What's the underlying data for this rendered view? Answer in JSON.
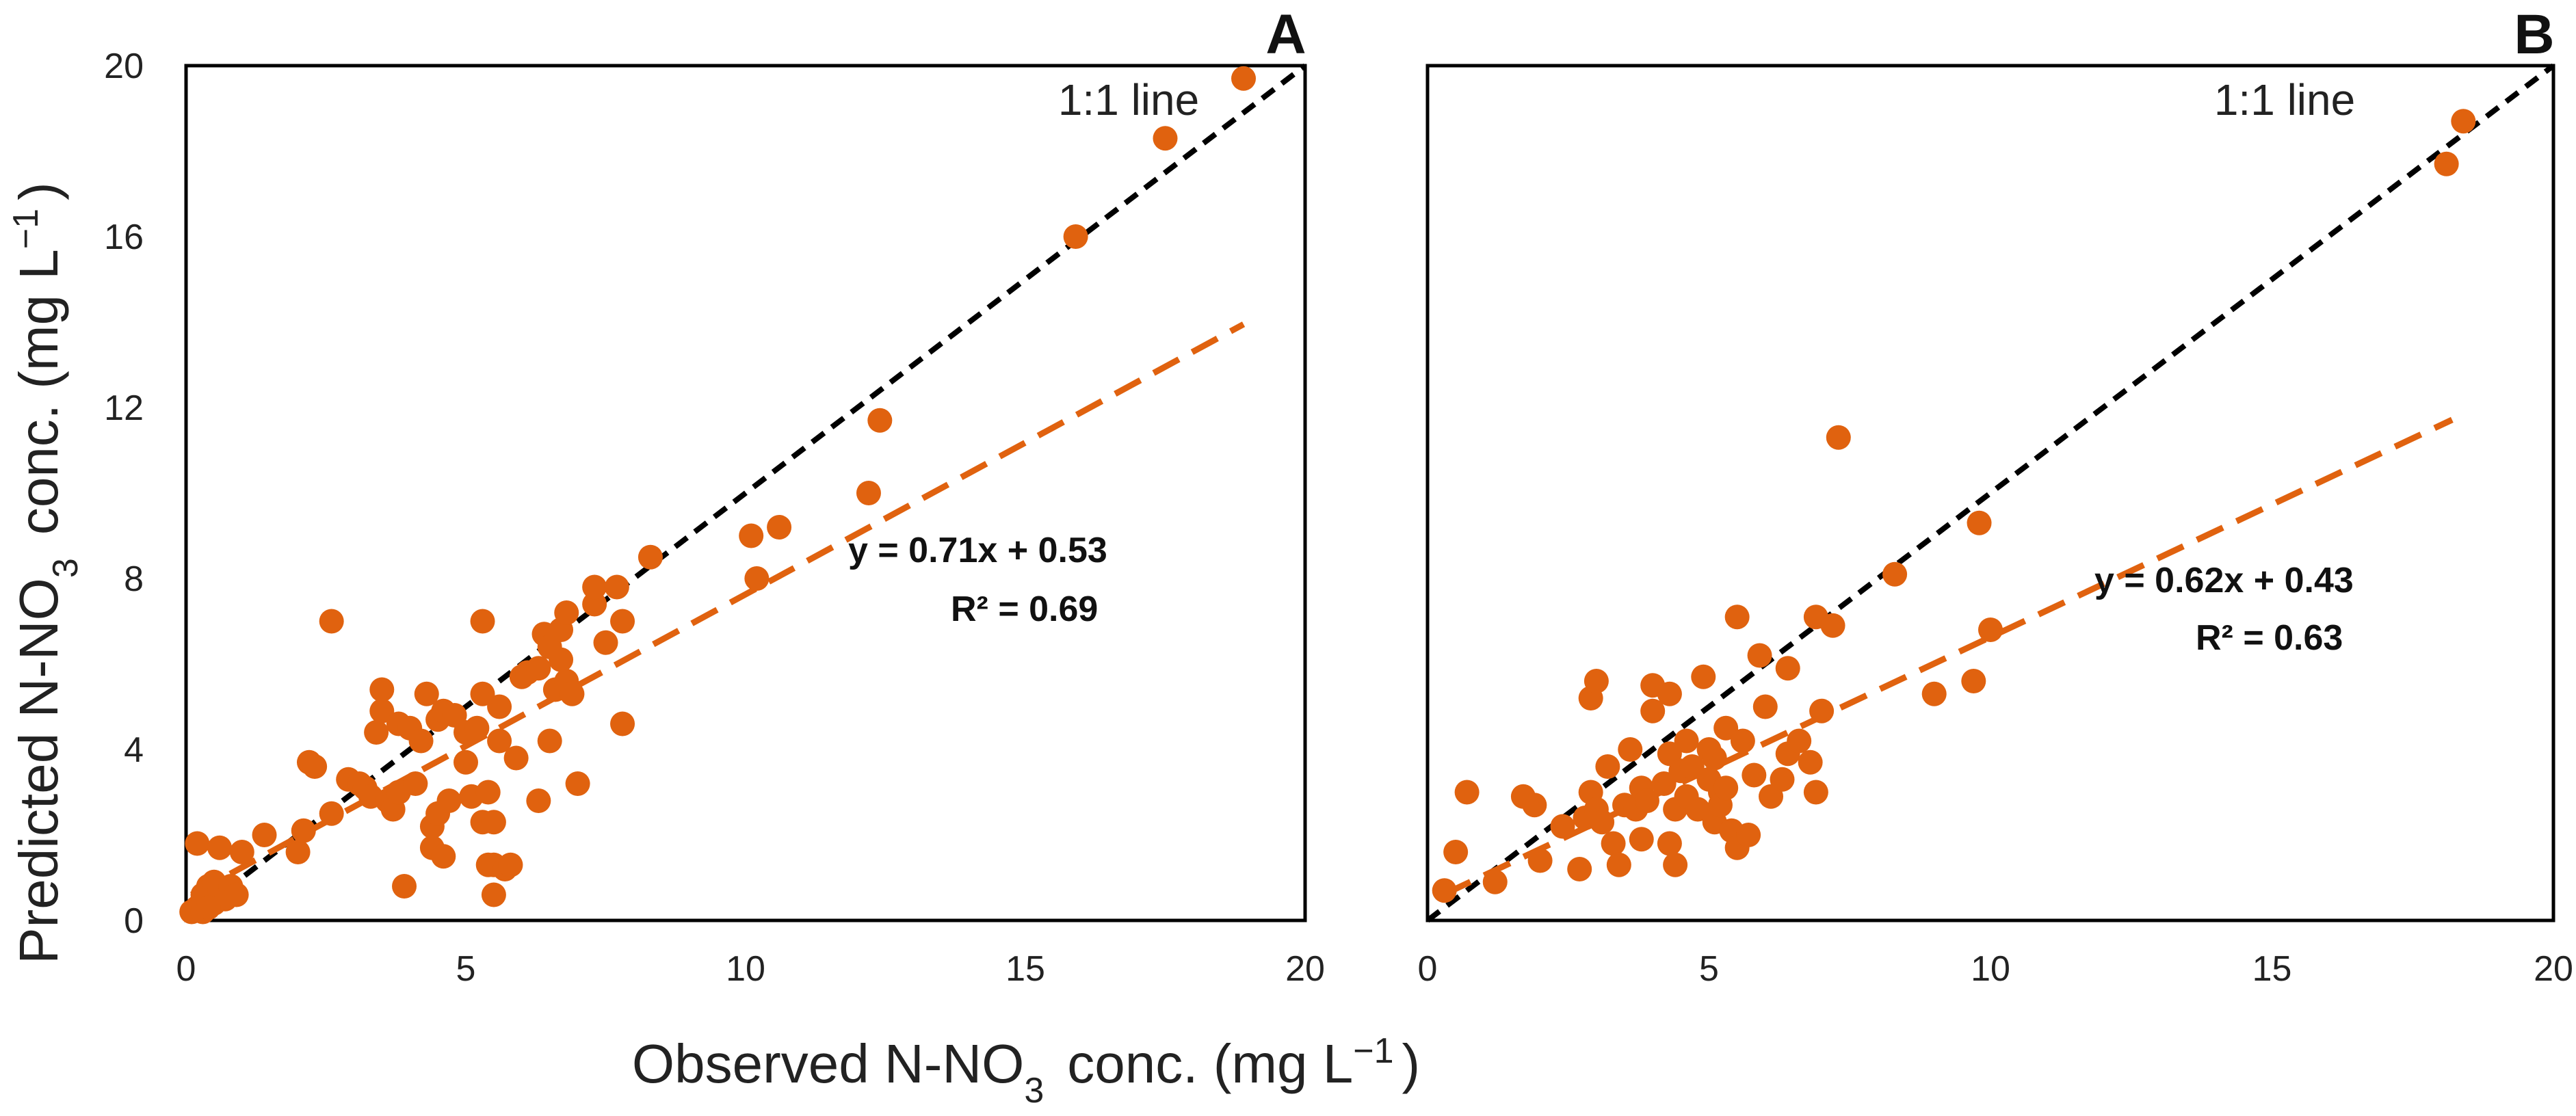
{
  "figure": {
    "xlabel": "Observed N-NO",
    "xlabel_sub": "3",
    "xlabel_unit": "conc. (mg L",
    "xlabel_sup": "−1",
    "xlabel_close": ")",
    "ylabel": "Predicted N-NO",
    "ylabel_sub": "3",
    "ylabel_unit": "conc. (mg L",
    "ylabel_sup": "−1",
    "ylabel_close": ")"
  },
  "colors": {
    "points": "#E0620F",
    "regression": "#E0620F",
    "one_to_one": "#000000",
    "frame": "#000000"
  },
  "chart_data": [
    {
      "panel": "A",
      "type": "scatter",
      "xlim": [
        0,
        20
      ],
      "ylim": [
        0,
        20
      ],
      "x_ticks": [
        0,
        5,
        10,
        15,
        20
      ],
      "y_ticks": [
        0,
        4,
        8,
        12,
        16,
        20
      ],
      "one_to_one_label": "1:1 line",
      "equation": "y = 0.71x + 0.53",
      "r2_label": "R² = 0.69",
      "regression": {
        "slope": 0.71,
        "intercept": 0.53,
        "x_start": 0.1,
        "x_end": 18.9
      },
      "points": [
        [
          0.1,
          0.2
        ],
        [
          0.2,
          0.3
        ],
        [
          0.3,
          0.2
        ],
        [
          0.3,
          0.6
        ],
        [
          0.4,
          0.8
        ],
        [
          0.5,
          0.4
        ],
        [
          0.5,
          0.9
        ],
        [
          0.6,
          0.7
        ],
        [
          0.7,
          0.5
        ],
        [
          0.8,
          0.8
        ],
        [
          0.9,
          0.6
        ],
        [
          0.2,
          1.8
        ],
        [
          0.6,
          1.7
        ],
        [
          1.0,
          1.6
        ],
        [
          0.4,
          0.3
        ],
        [
          1.4,
          2.0
        ],
        [
          2.0,
          1.6
        ],
        [
          2.1,
          2.1
        ],
        [
          2.2,
          3.7
        ],
        [
          2.3,
          3.6
        ],
        [
          2.6,
          2.5
        ],
        [
          2.6,
          7.0
        ],
        [
          2.9,
          3.3
        ],
        [
          3.1,
          3.2
        ],
        [
          3.2,
          3.1
        ],
        [
          3.3,
          2.9
        ],
        [
          3.4,
          4.4
        ],
        [
          3.5,
          5.4
        ],
        [
          3.5,
          4.9
        ],
        [
          3.6,
          2.8
        ],
        [
          3.7,
          2.6
        ],
        [
          3.8,
          4.6
        ],
        [
          3.8,
          3.0
        ],
        [
          3.9,
          0.8
        ],
        [
          4.0,
          4.5
        ],
        [
          4.1,
          3.2
        ],
        [
          4.2,
          4.2
        ],
        [
          4.3,
          5.3
        ],
        [
          4.4,
          2.2
        ],
        [
          4.4,
          1.7
        ],
        [
          4.5,
          2.5
        ],
        [
          4.5,
          4.7
        ],
        [
          4.6,
          4.9
        ],
        [
          4.6,
          1.5
        ],
        [
          4.7,
          2.8
        ],
        [
          4.8,
          4.8
        ],
        [
          5.0,
          3.7
        ],
        [
          5.0,
          4.4
        ],
        [
          5.1,
          2.9
        ],
        [
          5.2,
          4.5
        ],
        [
          5.3,
          7.0
        ],
        [
          5.3,
          5.3
        ],
        [
          5.3,
          2.3
        ],
        [
          5.4,
          3.0
        ],
        [
          5.4,
          1.3
        ],
        [
          5.5,
          0.6
        ],
        [
          5.5,
          1.3
        ],
        [
          5.5,
          2.3
        ],
        [
          5.6,
          4.2
        ],
        [
          5.6,
          5.0
        ],
        [
          5.7,
          1.2
        ],
        [
          5.8,
          1.3
        ],
        [
          5.9,
          3.8
        ],
        [
          6.0,
          5.7
        ],
        [
          6.1,
          5.8
        ],
        [
          6.3,
          2.8
        ],
        [
          6.3,
          5.9
        ],
        [
          6.4,
          6.7
        ],
        [
          6.5,
          4.2
        ],
        [
          6.5,
          6.4
        ],
        [
          6.6,
          5.4
        ],
        [
          6.7,
          6.1
        ],
        [
          6.7,
          6.8
        ],
        [
          6.8,
          5.6
        ],
        [
          6.8,
          7.2
        ],
        [
          6.9,
          5.3
        ],
        [
          7.0,
          3.2
        ],
        [
          7.3,
          7.4
        ],
        [
          7.3,
          7.8
        ],
        [
          7.5,
          6.5
        ],
        [
          7.7,
          7.8
        ],
        [
          7.8,
          4.6
        ],
        [
          7.8,
          7.0
        ],
        [
          8.3,
          8.5
        ],
        [
          10.1,
          9.0
        ],
        [
          10.2,
          8.0
        ],
        [
          10.6,
          9.2
        ],
        [
          12.2,
          10.0
        ],
        [
          12.4,
          11.7
        ],
        [
          15.9,
          16.0
        ],
        [
          17.5,
          18.3
        ],
        [
          18.9,
          19.7
        ]
      ]
    },
    {
      "panel": "B",
      "type": "scatter",
      "xlim": [
        0,
        20
      ],
      "ylim": [
        0,
        20
      ],
      "x_ticks": [
        0,
        5,
        10,
        15,
        20
      ],
      "y_ticks": [
        0,
        4,
        8,
        12,
        16,
        20
      ],
      "one_to_one_label": "1:1 line",
      "equation": "y = 0.62x + 0.43",
      "r2_label": "R² = 0.63",
      "regression": {
        "slope": 0.62,
        "intercept": 0.43,
        "x_start": 0.3,
        "x_end": 18.2
      },
      "points": [
        [
          0.3,
          0.7
        ],
        [
          0.5,
          1.6
        ],
        [
          0.7,
          3.0
        ],
        [
          1.2,
          0.9
        ],
        [
          1.7,
          2.9
        ],
        [
          1.9,
          2.7
        ],
        [
          2.0,
          1.4
        ],
        [
          2.4,
          2.2
        ],
        [
          2.7,
          1.2
        ],
        [
          2.8,
          2.4
        ],
        [
          2.9,
          5.2
        ],
        [
          2.9,
          3.0
        ],
        [
          3.0,
          5.6
        ],
        [
          3.0,
          2.6
        ],
        [
          3.1,
          2.3
        ],
        [
          3.2,
          3.6
        ],
        [
          3.3,
          1.8
        ],
        [
          3.4,
          1.3
        ],
        [
          3.5,
          2.7
        ],
        [
          3.6,
          4.0
        ],
        [
          3.7,
          2.6
        ],
        [
          3.8,
          3.1
        ],
        [
          3.8,
          1.9
        ],
        [
          3.9,
          2.8
        ],
        [
          4.0,
          4.9
        ],
        [
          4.0,
          5.5
        ],
        [
          4.2,
          3.2
        ],
        [
          4.3,
          3.9
        ],
        [
          4.3,
          5.3
        ],
        [
          4.3,
          1.8
        ],
        [
          4.4,
          1.3
        ],
        [
          4.4,
          2.6
        ],
        [
          4.5,
          3.5
        ],
        [
          4.6,
          4.2
        ],
        [
          4.6,
          2.9
        ],
        [
          4.7,
          3.6
        ],
        [
          4.8,
          2.6
        ],
        [
          4.9,
          5.7
        ],
        [
          5.0,
          4.0
        ],
        [
          5.0,
          3.3
        ],
        [
          5.1,
          2.3
        ],
        [
          5.1,
          3.8
        ],
        [
          5.2,
          3.0
        ],
        [
          5.2,
          2.7
        ],
        [
          5.3,
          4.5
        ],
        [
          5.3,
          3.1
        ],
        [
          5.4,
          2.1
        ],
        [
          5.5,
          1.7
        ],
        [
          5.5,
          7.1
        ],
        [
          5.6,
          4.2
        ],
        [
          5.7,
          2.0
        ],
        [
          5.8,
          3.4
        ],
        [
          5.9,
          6.2
        ],
        [
          6.0,
          5.0
        ],
        [
          6.1,
          2.9
        ],
        [
          6.3,
          3.3
        ],
        [
          6.4,
          3.9
        ],
        [
          6.4,
          5.9
        ],
        [
          6.6,
          4.2
        ],
        [
          6.8,
          3.7
        ],
        [
          6.9,
          7.1
        ],
        [
          6.9,
          3.0
        ],
        [
          7.0,
          4.9
        ],
        [
          7.2,
          6.9
        ],
        [
          7.3,
          11.3
        ],
        [
          8.3,
          8.1
        ],
        [
          9.0,
          5.3
        ],
        [
          9.7,
          5.6
        ],
        [
          9.8,
          9.3
        ],
        [
          10.0,
          6.8
        ],
        [
          18.1,
          17.7
        ],
        [
          18.4,
          18.7
        ]
      ]
    }
  ]
}
